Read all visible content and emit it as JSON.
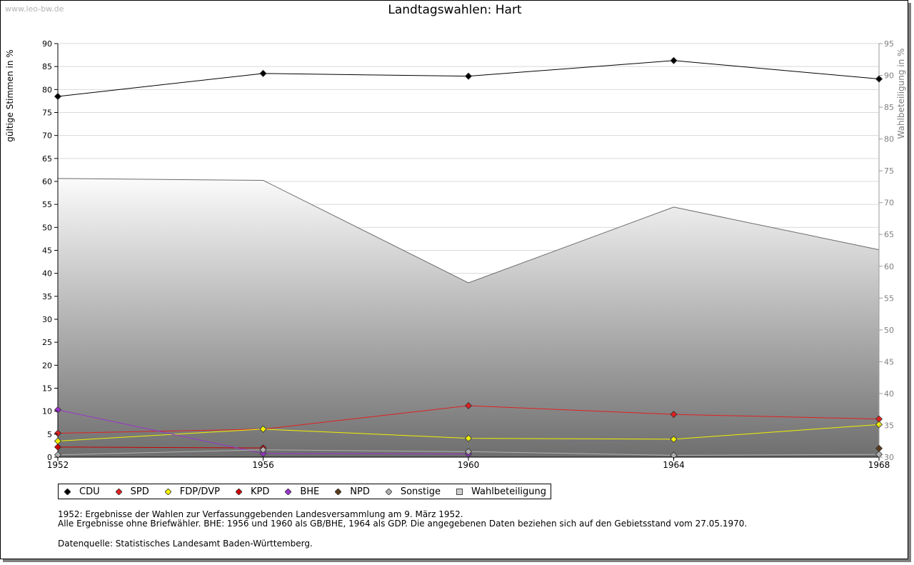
{
  "watermark": "www.leo-bw.de",
  "chart_data": {
    "type": "line",
    "title": "Landtagswahlen: Hart",
    "ylabel": "gültige Stimmen in %",
    "y2label": "Wahlbeteiligung in %",
    "x": [
      "1952",
      "1956",
      "1960",
      "1964",
      "1968"
    ],
    "ylim": [
      0,
      90
    ],
    "y2lim": [
      30,
      95
    ],
    "yticks": [
      0,
      5,
      10,
      15,
      20,
      25,
      30,
      35,
      40,
      45,
      50,
      55,
      60,
      65,
      70,
      75,
      80,
      85,
      90
    ],
    "y2ticks": [
      30,
      35,
      40,
      45,
      50,
      55,
      60,
      65,
      70,
      75,
      80,
      85,
      90,
      95
    ],
    "grid": true,
    "legend_position": "bottom",
    "series": [
      {
        "name": "CDU",
        "color": "#000000",
        "values": [
          78.5,
          83.5,
          82.9,
          86.3,
          82.3
        ]
      },
      {
        "name": "SPD",
        "color": "#e02020",
        "values": [
          5.2,
          6.1,
          11.2,
          9.3,
          8.3
        ]
      },
      {
        "name": "FDP/DVP",
        "color": "#f0f000",
        "values": [
          3.5,
          6.1,
          4.1,
          3.9,
          7.1
        ]
      },
      {
        "name": "KPD",
        "color": "#cc0000",
        "values": [
          2.2,
          2.0,
          null,
          null,
          null
        ]
      },
      {
        "name": "BHE",
        "color": "#9933cc",
        "values": [
          10.3,
          0.8,
          0.7,
          null,
          null
        ]
      },
      {
        "name": "NPD",
        "color": "#5a3a1a",
        "values": [
          null,
          null,
          null,
          null,
          1.9
        ]
      },
      {
        "name": "Sonstige",
        "color": "#b0b0b0",
        "values": [
          0.5,
          1.6,
          1.2,
          0.4,
          0.6
        ]
      },
      {
        "name": "Wahlbeteiligung",
        "axis": "right",
        "type": "area",
        "values": [
          73.8,
          73.5,
          57.4,
          69.3,
          62.6
        ]
      }
    ]
  },
  "notes": [
    "1952: Ergebnisse der Wahlen zur Verfassunggebenden Landesversammlung am 9. März 1952.",
    "Alle Ergebnisse ohne Briefwähler. BHE: 1956 und 1960 als GB/BHE, 1964 als GDP. Die angegebenen Daten beziehen sich auf den Gebietsstand vom 27.05.1970."
  ],
  "source": "Datenquelle: Statistisches Landesamt Baden-Württemberg."
}
